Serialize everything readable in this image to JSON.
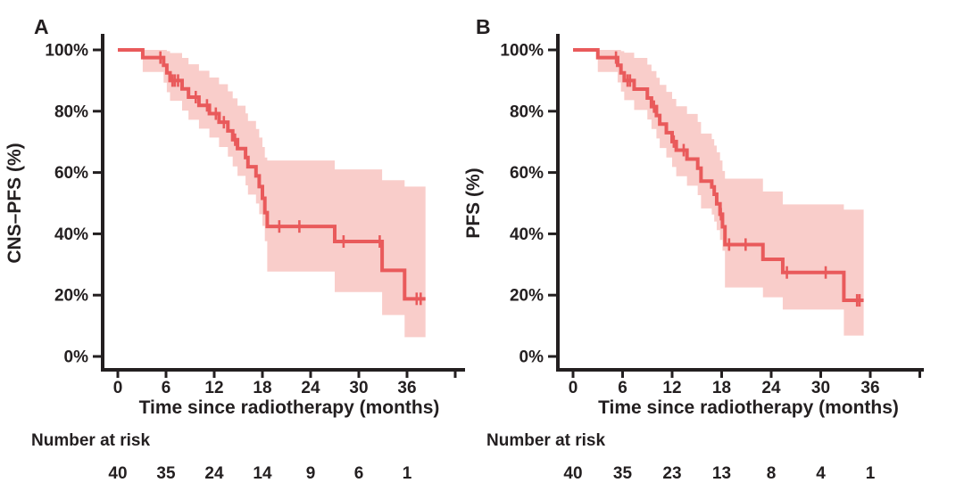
{
  "figure": {
    "background": "#ffffff",
    "colors": {
      "curve": "#e95a5b",
      "band": "#f9cdca",
      "axis": "#231f20",
      "text": "#231f20"
    }
  },
  "chart_data": [
    {
      "type": "line",
      "subtype": "kaplan_meier_step_with_confidence_band",
      "panel_label": "A",
      "ylabel": "CNS–PFS (%)",
      "xlabel": "Time since radiotherapy (months)",
      "xlim": [
        0,
        43
      ],
      "ylim": [
        0,
        100
      ],
      "grid": false,
      "legend": false,
      "x_ticks": [
        0,
        6,
        12,
        18,
        24,
        30,
        36,
        42
      ],
      "x_tick_labels": [
        "0",
        "6",
        "12",
        "18",
        "24",
        "30",
        "36",
        ""
      ],
      "y_ticks": [
        0,
        20,
        40,
        60,
        80,
        100
      ],
      "y_tick_labels": [
        "0%",
        "20%",
        "40%",
        "60%",
        "80%",
        "100%"
      ],
      "series": {
        "name": "CNS-PFS",
        "steps": [
          [
            0,
            100
          ],
          [
            3.1,
            97.5
          ],
          [
            5.7,
            95.0
          ],
          [
            6.1,
            92.5
          ],
          [
            6.5,
            90.0
          ],
          [
            8.0,
            87.3
          ],
          [
            8.8,
            84.6
          ],
          [
            10.1,
            81.9
          ],
          [
            11.4,
            79.2
          ],
          [
            12.6,
            76.4
          ],
          [
            13.7,
            73.6
          ],
          [
            14.3,
            70.7
          ],
          [
            14.9,
            67.8
          ],
          [
            15.9,
            64.9
          ],
          [
            16.2,
            61.9
          ],
          [
            17.2,
            58.9
          ],
          [
            17.6,
            55.4
          ],
          [
            18.0,
            51.6
          ],
          [
            18.3,
            46.9
          ],
          [
            18.6,
            42.4
          ],
          [
            27.0,
            37.5
          ],
          [
            32.9,
            28.1
          ],
          [
            35.7,
            18.8
          ]
        ],
        "end_time": 38.3,
        "censor_marks": [
          [
            5.3,
            97.5
          ],
          [
            6.8,
            90
          ],
          [
            7.1,
            90
          ],
          [
            7.5,
            90
          ],
          [
            9.7,
            84.6
          ],
          [
            11.1,
            81.9
          ],
          [
            12.2,
            79.2
          ],
          [
            13.2,
            76.4
          ],
          [
            14.6,
            70.7
          ],
          [
            20.1,
            42.4
          ],
          [
            22.6,
            42.4
          ],
          [
            28.1,
            37.5
          ],
          [
            32.6,
            37.5
          ],
          [
            37.2,
            18.8
          ],
          [
            37.7,
            18.8
          ]
        ],
        "confidence_band": [
          [
            3.1,
            100,
            92.8
          ],
          [
            5.7,
            100,
            89.3
          ],
          [
            6.1,
            99.6,
            86.2
          ],
          [
            6.5,
            99.0,
            83.4
          ],
          [
            8.0,
            97.4,
            80.2
          ],
          [
            8.8,
            95.3,
            77.2
          ],
          [
            10.1,
            93.2,
            74.3
          ],
          [
            11.4,
            91.0,
            71.4
          ],
          [
            12.6,
            88.8,
            68.3
          ],
          [
            13.7,
            86.5,
            65.2
          ],
          [
            14.3,
            84.2,
            62.0
          ],
          [
            14.9,
            81.8,
            58.9
          ],
          [
            15.9,
            79.3,
            55.8
          ],
          [
            16.2,
            76.8,
            52.8
          ],
          [
            17.2,
            74.2,
            49.9
          ],
          [
            17.6,
            71.4,
            46.4
          ],
          [
            18.0,
            68.3,
            42.6
          ],
          [
            18.3,
            64.9,
            37.6
          ],
          [
            18.6,
            63.9,
            27.7
          ],
          [
            27.0,
            61.0,
            21.0
          ],
          [
            32.9,
            57.5,
            13.5
          ],
          [
            35.7,
            55.4,
            6.3
          ]
        ]
      },
      "number_at_risk": {
        "label": "Number at risk",
        "times": [
          0,
          6,
          12,
          18,
          24,
          30,
          36
        ],
        "values": [
          "40",
          "35",
          "24",
          "14",
          "9",
          "6",
          "1"
        ]
      }
    },
    {
      "type": "line",
      "subtype": "kaplan_meier_step_with_confidence_band",
      "panel_label": "B",
      "ylabel": "PFS (%)",
      "xlabel": "Time since radiotherapy (months)",
      "xlim": [
        0,
        43
      ],
      "ylim": [
        0,
        100
      ],
      "grid": false,
      "legend": false,
      "x_ticks": [
        0,
        6,
        12,
        18,
        24,
        30,
        36,
        42
      ],
      "x_tick_labels": [
        "0",
        "6",
        "12",
        "18",
        "24",
        "30",
        "36",
        ""
      ],
      "y_ticks": [
        0,
        20,
        40,
        60,
        80,
        100
      ],
      "y_tick_labels": [
        "0%",
        "20%",
        "40%",
        "60%",
        "80%",
        "100%"
      ],
      "series": {
        "name": "PFS",
        "steps": [
          [
            0,
            100
          ],
          [
            3.0,
            97.5
          ],
          [
            5.4,
            95.0
          ],
          [
            5.8,
            92.5
          ],
          [
            6.2,
            90.0
          ],
          [
            7.4,
            87.2
          ],
          [
            9.0,
            84.3
          ],
          [
            9.5,
            81.5
          ],
          [
            10.1,
            78.6
          ],
          [
            10.5,
            75.8
          ],
          [
            11.3,
            73.0
          ],
          [
            12.0,
            70.1
          ],
          [
            12.5,
            67.3
          ],
          [
            13.8,
            64.4
          ],
          [
            15.1,
            61.4
          ],
          [
            15.5,
            57.2
          ],
          [
            16.8,
            55.3
          ],
          [
            17.1,
            52.9
          ],
          [
            17.4,
            49.8
          ],
          [
            17.8,
            46.4
          ],
          [
            18.1,
            42.3
          ],
          [
            18.4,
            36.5
          ],
          [
            23.0,
            31.7
          ],
          [
            25.4,
            27.4
          ],
          [
            32.8,
            18.3
          ]
        ],
        "end_time": 35.2,
        "censor_marks": [
          [
            5.2,
            97.5
          ],
          [
            6.6,
            90
          ],
          [
            6.9,
            90
          ],
          [
            9.8,
            81.5
          ],
          [
            12.2,
            70.1
          ],
          [
            13.4,
            67.3
          ],
          [
            17.9,
            46.4
          ],
          [
            18.9,
            36.5
          ],
          [
            20.9,
            36.5
          ],
          [
            25.9,
            27.4
          ],
          [
            30.6,
            27.4
          ],
          [
            34.4,
            18.3
          ],
          [
            34.7,
            18.3
          ]
        ],
        "confidence_band": [
          [
            3.0,
            100,
            92.8
          ],
          [
            5.4,
            100,
            89.4
          ],
          [
            5.8,
            99.6,
            86.4
          ],
          [
            6.2,
            99.1,
            83.6
          ],
          [
            7.4,
            97.4,
            80.4
          ],
          [
            9.0,
            95.2,
            77.3
          ],
          [
            9.5,
            93.1,
            74.2
          ],
          [
            10.1,
            90.9,
            71.1
          ],
          [
            10.5,
            88.6,
            68.0
          ],
          [
            11.3,
            86.3,
            64.9
          ],
          [
            12.0,
            84.0,
            61.8
          ],
          [
            12.5,
            81.6,
            58.8
          ],
          [
            13.8,
            79.1,
            55.7
          ],
          [
            15.1,
            76.5,
            52.6
          ],
          [
            15.5,
            72.7,
            48.3
          ],
          [
            16.8,
            70.9,
            46.3
          ],
          [
            17.1,
            68.8,
            44.0
          ],
          [
            17.4,
            66.6,
            41.2
          ],
          [
            17.8,
            63.9,
            38.0
          ],
          [
            18.1,
            60.5,
            34.5
          ],
          [
            18.4,
            58.0,
            22.5
          ],
          [
            23.0,
            53.8,
            19.3
          ],
          [
            25.4,
            49.6,
            15.3
          ],
          [
            32.8,
            47.9,
            6.8
          ]
        ]
      },
      "number_at_risk": {
        "label": "Number at risk",
        "times": [
          0,
          6,
          12,
          18,
          24,
          30,
          36
        ],
        "values": [
          "40",
          "35",
          "23",
          "13",
          "8",
          "4",
          "1"
        ]
      }
    }
  ]
}
